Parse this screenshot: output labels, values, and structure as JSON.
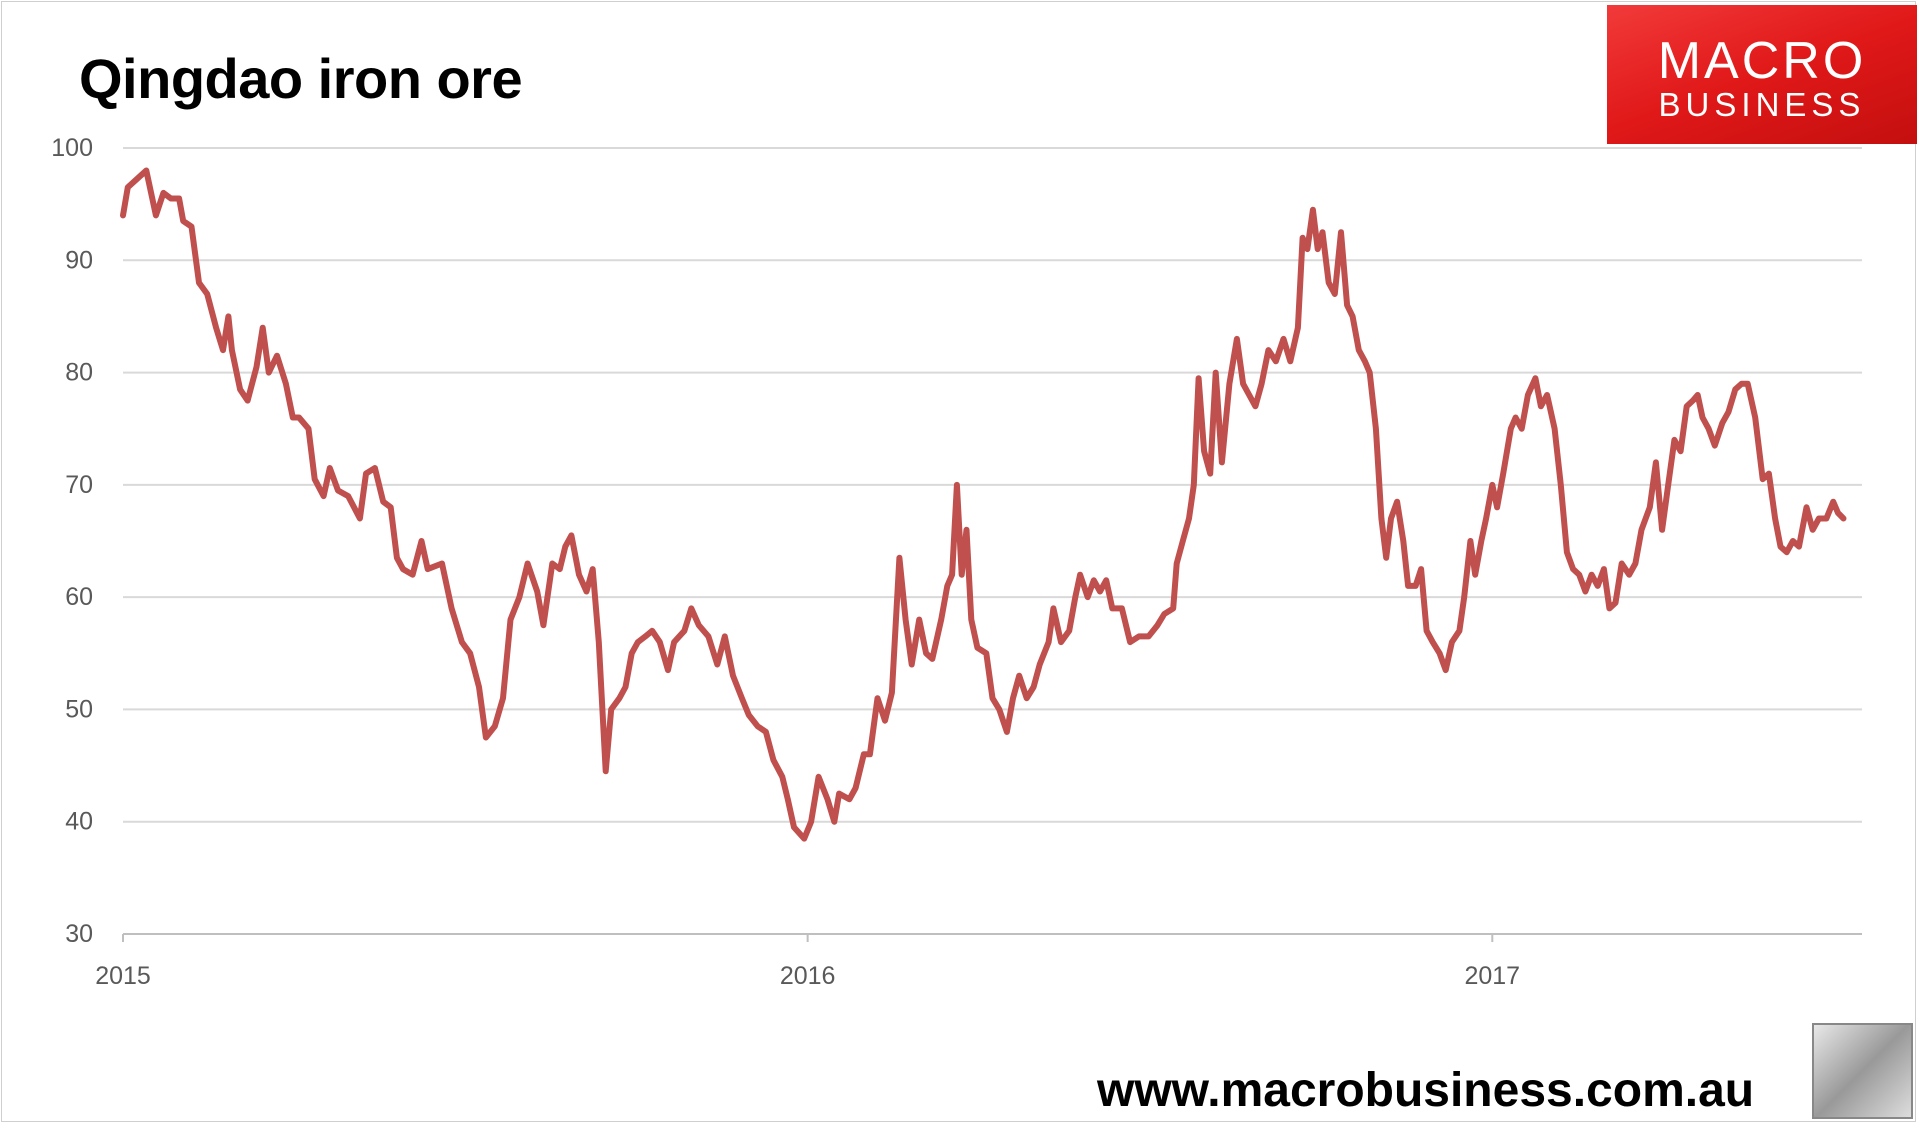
{
  "chart_data": {
    "type": "line",
    "title": "Qingdao iron ore",
    "xlabel": "",
    "ylabel": "",
    "xlim": [
      2015,
      2017.54
    ],
    "ylim": [
      30,
      100
    ],
    "yticks": [
      30,
      40,
      50,
      60,
      70,
      80,
      90,
      100
    ],
    "xticks": [
      2015,
      2016,
      2017
    ],
    "xtick_labels": [
      "2015",
      "2016",
      "2017"
    ],
    "ytick_labels": [
      "30",
      "40",
      "50",
      "60",
      "70",
      "80",
      "90",
      "100"
    ],
    "grid": true,
    "legend": "none",
    "line_color": "#c0504d",
    "series": [
      {
        "x": [
          2015.0,
          2015.007,
          2015.025,
          2015.034,
          2015.048,
          2015.059,
          2015.07,
          2015.082,
          2015.088,
          2015.1,
          2015.111,
          2015.123,
          2015.136,
          2015.146,
          2015.154,
          2015.159,
          2015.171,
          2015.182,
          2015.195,
          2015.204,
          2015.213,
          2015.225,
          2015.238,
          2015.248,
          2015.257,
          2015.271,
          2015.28,
          2015.293,
          2015.302,
          2015.314,
          2015.329,
          2015.346,
          2015.355,
          2015.368,
          2015.38,
          2015.391,
          2015.4,
          2015.409,
          2015.423,
          2015.436,
          2015.445,
          2015.466,
          2015.48,
          2015.495,
          2015.507,
          2015.52,
          2015.53,
          2015.543,
          2015.555,
          2015.566,
          2015.579,
          2015.591,
          2015.605,
          2015.614,
          2015.627,
          2015.638,
          2015.646,
          2015.655,
          2015.666,
          2015.677,
          2015.686,
          2015.695,
          2015.705,
          2015.713,
          2015.725,
          2015.734,
          2015.743,
          2015.752,
          2015.763,
          2015.773,
          2015.784,
          2015.796,
          2015.805,
          2015.82,
          2015.83,
          2015.841,
          2015.855,
          2015.868,
          2015.879,
          2015.891,
          2015.904,
          2015.914,
          2015.927,
          2015.939,
          2015.95,
          2015.963,
          2015.971,
          2015.98,
          2015.995,
          2016.005,
          2016.016,
          2016.029,
          2016.039,
          2016.046,
          2016.061,
          2016.07,
          2016.082,
          2016.091,
          2016.102,
          2016.113,
          2016.123,
          2016.134,
          2016.143,
          2016.152,
          2016.163,
          2016.173,
          2016.182,
          2016.195,
          2016.204,
          2016.211,
          2016.218,
          2016.225,
          2016.232,
          2016.239,
          2016.248,
          2016.261,
          2016.27,
          2016.28,
          2016.291,
          2016.3,
          2016.309,
          2016.32,
          2016.33,
          2016.339,
          2016.352,
          2016.359,
          2016.37,
          2016.382,
          2016.391,
          2016.398,
          2016.409,
          2016.418,
          2016.427,
          2016.436,
          2016.445,
          2016.459,
          2016.471,
          2016.484,
          2016.498,
          2016.511,
          2016.521,
          2016.534,
          2016.539,
          2016.548,
          2016.557,
          2016.564,
          2016.571,
          2016.579,
          2016.588,
          2016.596,
          2016.605,
          2016.616,
          2016.627,
          2016.636,
          2016.645,
          2016.654,
          2016.663,
          2016.673,
          2016.684,
          2016.695,
          2016.705,
          2016.716,
          2016.723,
          2016.73,
          2016.738,
          2016.745,
          2016.752,
          2016.761,
          2016.77,
          2016.779,
          2016.788,
          2016.796,
          2016.805,
          2016.814,
          2016.821,
          2016.83,
          2016.838,
          2016.845,
          2016.852,
          2016.861,
          2016.87,
          2016.877,
          2016.888,
          2016.896,
          2016.904,
          2016.913,
          2016.923,
          2016.932,
          2016.941,
          2016.952,
          2016.959,
          2016.968,
          2016.975,
          2016.984,
          2016.991,
          2017.0,
          2017.007,
          2017.016,
          2017.027,
          2017.034,
          2017.043,
          2017.052,
          2017.063,
          2017.071,
          2017.08,
          2017.091,
          2017.1,
          2017.109,
          2017.118,
          2017.127,
          2017.136,
          2017.145,
          2017.154,
          2017.163,
          2017.171,
          2017.18,
          2017.189,
          2017.2,
          2017.209,
          2017.218,
          2017.23,
          2017.239,
          2017.248,
          2017.257,
          2017.266,
          2017.275,
          2017.284,
          2017.293,
          2017.3,
          2017.307,
          2017.316,
          2017.325,
          2017.336,
          2017.345,
          2017.355,
          2017.364,
          2017.373,
          2017.384,
          2017.395,
          2017.404,
          2017.413,
          2017.421,
          2017.43,
          2017.439,
          2017.448,
          2017.459,
          2017.468,
          2017.477,
          2017.488,
          2017.498,
          2017.505,
          2017.513
        ],
        "values": [
          94,
          96.5,
          97.5,
          98,
          94,
          96,
          95.5,
          95.5,
          93.5,
          93,
          88,
          87,
          84,
          82,
          85,
          82,
          78.5,
          77.5,
          80.5,
          84,
          80,
          81.5,
          79,
          76,
          76,
          75,
          70.5,
          69,
          71.5,
          69.5,
          69,
          67,
          71,
          71.5,
          68.5,
          68,
          63.5,
          62.5,
          62,
          65,
          62.5,
          63,
          59,
          56,
          55,
          52,
          47.5,
          48.5,
          51,
          58,
          60,
          63,
          60.5,
          57.5,
          63,
          62.5,
          64.5,
          65.5,
          62,
          60.5,
          62.5,
          56,
          44.5,
          50,
          51,
          52,
          55,
          56,
          56.5,
          57,
          56,
          53.5,
          56,
          57,
          59,
          57.5,
          56.5,
          54,
          56.5,
          53,
          51,
          49.5,
          48.5,
          48,
          45.5,
          44,
          42,
          39.5,
          38.5,
          40,
          44,
          42,
          40,
          42.5,
          42,
          43,
          46,
          46,
          51,
          49,
          51.5,
          63.5,
          58,
          54,
          58,
          55,
          54.5,
          58,
          61,
          62,
          70,
          62,
          66,
          58,
          55.5,
          55,
          51,
          50,
          48,
          51,
          53,
          51,
          52,
          54,
          56,
          59,
          56,
          57,
          60,
          62,
          60,
          61.5,
          60.5,
          61.5,
          59,
          59,
          56,
          56.5,
          56.5,
          57.5,
          58.5,
          59,
          63,
          65,
          67,
          70,
          79.5,
          73,
          71,
          80,
          72,
          79,
          83,
          79,
          78,
          77,
          79,
          82,
          81,
          83,
          81,
          84,
          92,
          91,
          94.5,
          91,
          92.5,
          88,
          87,
          92.5,
          86,
          85,
          82,
          81,
          80,
          75,
          67,
          63.5,
          67,
          68.5,
          65,
          61,
          61,
          62.5,
          57,
          56,
          55,
          53.5,
          56,
          57,
          60,
          65,
          62,
          65,
          67,
          70,
          68,
          71,
          75,
          76,
          75,
          78,
          79.5,
          77,
          78,
          75,
          70,
          64,
          62.5,
          62,
          60.5,
          62,
          61,
          62.5,
          59,
          59.5,
          63,
          62,
          63,
          66,
          68,
          72,
          66,
          70,
          74,
          73,
          77,
          77.5,
          78,
          76,
          75,
          73.5,
          75.5,
          76.5,
          78.5,
          79,
          79,
          76,
          70.5,
          71,
          67,
          64.5,
          64,
          65,
          64.5,
          68,
          66,
          67,
          67,
          68.5,
          67.5,
          67
        ]
      }
    ]
  },
  "branding": {
    "logo_line1": "MACRO",
    "logo_line2": "BUSINESS",
    "url": "www.macrobusiness.com.au",
    "logo_color": "#e01818"
  }
}
